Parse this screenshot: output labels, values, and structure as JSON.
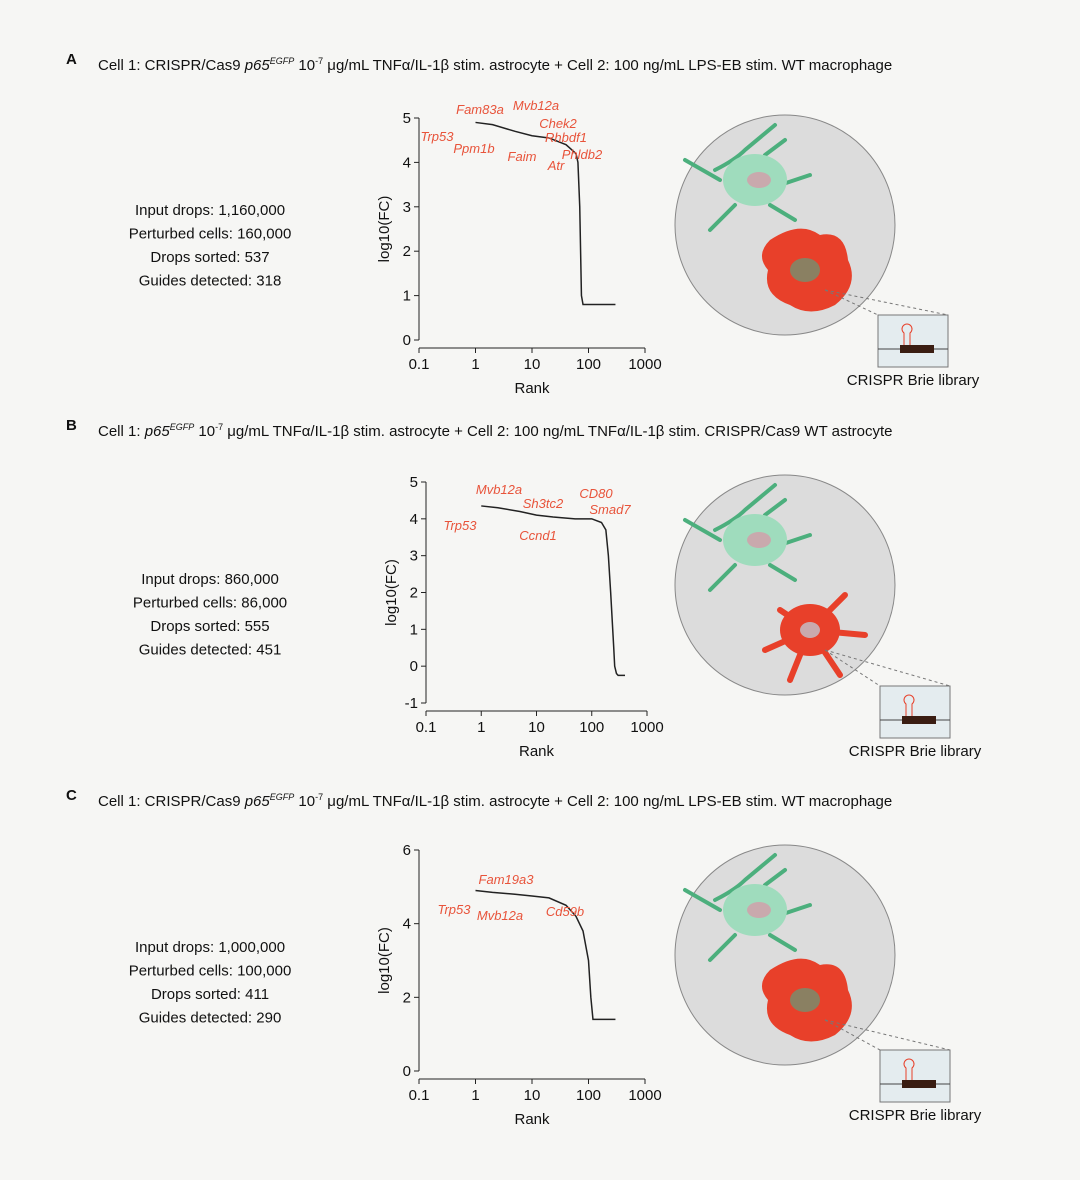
{
  "panels": [
    {
      "label": "A",
      "title": [
        "Cell 1: CRISPR/Cas9 ",
        "p65",
        "EGFP",
        " 10",
        "-7",
        " μg/mL TNFα/IL-1β stim. astrocyte + Cell 2: 100 ng/mL LPS-EB stim. WT macrophage"
      ],
      "stats": [
        "Input drops: 1,160,000",
        "Perturbed cells: 160,000",
        "Drops sorted: 537",
        "Guides detected: 318"
      ],
      "library_label": "CRISPR Brie library"
    },
    {
      "label": "B",
      "title": [
        "Cell 1: ",
        "p65",
        "EGFP",
        " 10",
        "-7",
        " μg/mL TNFα/IL-1β stim. astrocyte + Cell 2: 100 ng/mL TNFα/IL-1β stim. CRISPR/Cas9 WT astrocyte"
      ],
      "stats": [
        "Input drops: 860,000",
        "Perturbed cells: 86,000",
        "Drops sorted: 555",
        "Guides detected: 451"
      ],
      "library_label": "CRISPR Brie library"
    },
    {
      "label": "C",
      "title": [
        "Cell 1: CRISPR/Cas9 ",
        "p65",
        "EGFP",
        " 10",
        "-7",
        " μg/mL TNFα/IL-1β stim. astrocyte + Cell 2: 100 ng/mL LPS-EB stim. WT macrophage"
      ],
      "stats": [
        "Input drops: 1,000,000",
        "Perturbed cells: 100,000",
        "Drops sorted: 411",
        "Guides detected: 290"
      ],
      "library_label": "CRISPR Brie library"
    }
  ],
  "chart_data": [
    {
      "type": "line",
      "x_label": "Rank",
      "y_label": "log10(FC)",
      "log_x": true,
      "color": "#222222",
      "xlim": [
        0.1,
        1000
      ],
      "xticks": [
        0.1,
        1,
        10,
        100,
        1000
      ],
      "ylim": [
        0,
        5
      ],
      "yticks": [
        0,
        1,
        2,
        3,
        4,
        5
      ],
      "x": [
        1,
        2,
        5,
        10,
        20,
        40,
        60,
        65,
        70,
        75,
        80,
        300
      ],
      "values": [
        4.9,
        4.85,
        4.7,
        4.6,
        4.55,
        4.4,
        4.2,
        4.0,
        3.0,
        1.0,
        0.8,
        0.8
      ],
      "annotations": [
        "Fam83a",
        "Mvb12a",
        "Chek2",
        "Rhbdf1",
        "Trp53",
        "Ppm1b",
        "Faim",
        "Phldb2",
        "Atr"
      ]
    },
    {
      "type": "line",
      "x_label": "Rank",
      "y_label": "log10(FC)",
      "log_x": true,
      "color": "#222222",
      "xlim": [
        0.1,
        1000
      ],
      "xticks": [
        0.1,
        1,
        10,
        100,
        1000
      ],
      "ylim": [
        -1,
        5
      ],
      "yticks": [
        -1,
        0,
        1,
        2,
        3,
        4,
        5
      ],
      "x": [
        1,
        2,
        5,
        10,
        20,
        50,
        100,
        150,
        180,
        200,
        220,
        250,
        260,
        280,
        300,
        400
      ],
      "values": [
        4.35,
        4.3,
        4.2,
        4.1,
        4.05,
        4.0,
        4.0,
        3.9,
        3.7,
        3.0,
        2.0,
        0.5,
        0.0,
        -0.2,
        -0.25,
        -0.25
      ],
      "annotations": [
        "Mvb12a",
        "CD80",
        "Sh3tc2",
        "Smad7",
        "Trp53",
        "Ccnd1"
      ]
    },
    {
      "type": "line",
      "x_label": "Rank",
      "y_label": "log10(FC)",
      "log_x": true,
      "color": "#222222",
      "xlim": [
        0.1,
        1000
      ],
      "xticks": [
        0.1,
        1,
        10,
        100,
        1000
      ],
      "ylim": [
        0,
        6
      ],
      "yticks": [
        0,
        2,
        4,
        6
      ],
      "x": [
        1,
        2,
        5,
        10,
        20,
        40,
        60,
        80,
        100,
        110,
        120,
        300
      ],
      "values": [
        4.9,
        4.85,
        4.8,
        4.75,
        4.7,
        4.5,
        4.2,
        3.8,
        3.0,
        2.0,
        1.4,
        1.4
      ],
      "annotations": [
        "Fam19a3",
        "Trp53",
        "Mvb12a",
        "Cd59b"
      ]
    }
  ]
}
